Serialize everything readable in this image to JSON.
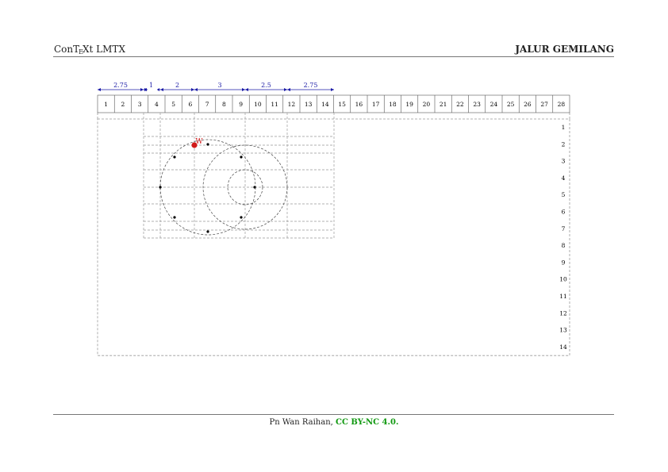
{
  "header": {
    "left_title": "ConTEXt LMTX",
    "right_title": "JALUR GEMILANG"
  },
  "footer": {
    "author": "Pn Wan Raihan,",
    "license": "CC BY-NC 4.0."
  },
  "diagram": {
    "column_labels": [
      "1",
      "2",
      "3",
      "4",
      "5",
      "6",
      "7",
      "8",
      "9",
      "10",
      "11",
      "12",
      "13",
      "14",
      "15",
      "16",
      "17",
      "18",
      "19",
      "20",
      "21",
      "22",
      "23",
      "24",
      "25",
      "26",
      "27",
      "28"
    ],
    "row_labels": [
      "1",
      "2",
      "3",
      "4",
      "5",
      "6",
      "7",
      "8",
      "9",
      "10",
      "11",
      "12",
      "13",
      "14"
    ],
    "dimensions": [
      "2.75",
      "1",
      "2",
      "3",
      "2.5",
      "2.75"
    ],
    "point_label": "W",
    "colors": {
      "dimension": "#1a1aa6",
      "point": "#d11a1a",
      "grid": "#999999",
      "ink": "#000000"
    }
  }
}
